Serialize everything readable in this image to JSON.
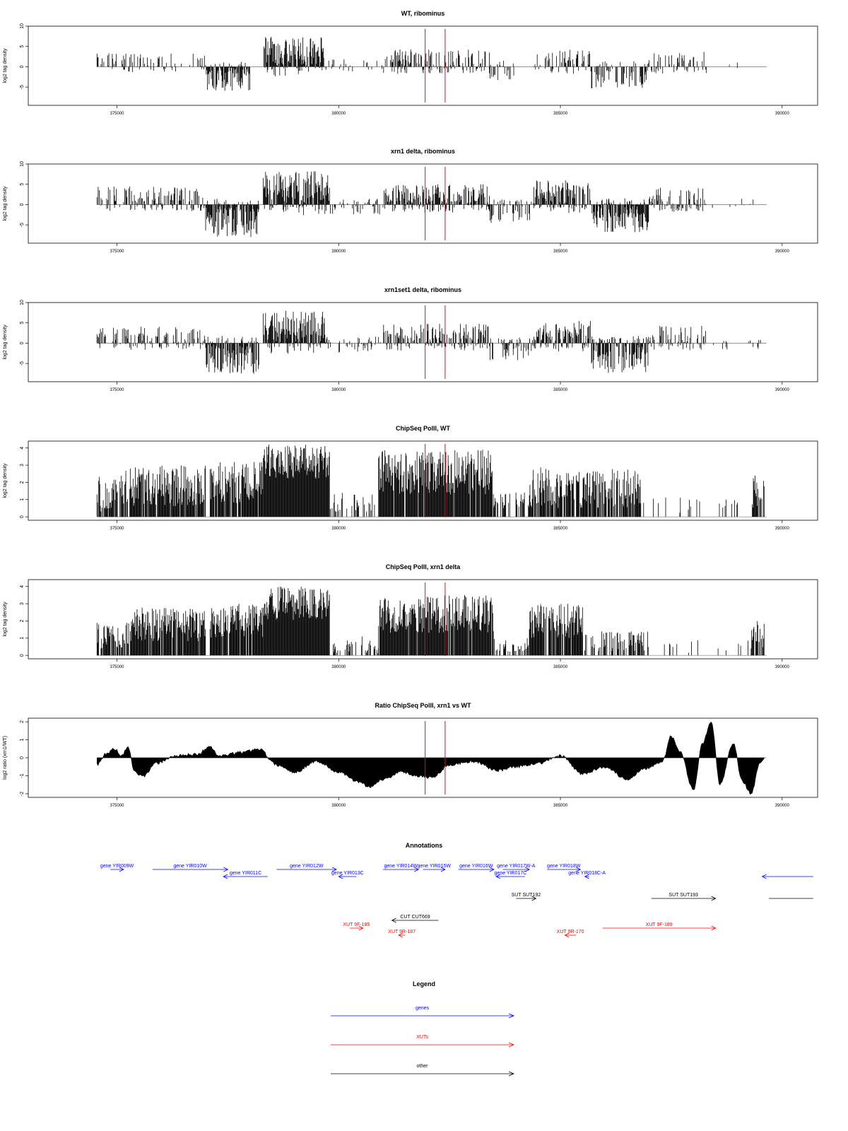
{
  "chart_data": [
    {
      "type": "bar",
      "title": "WT, ribominus",
      "ylabel": "log2 tag density",
      "xlim": [
        373000,
        390800
      ],
      "ylim": [
        -9.5,
        10
      ],
      "yticks": [
        "10",
        "5",
        "0",
        "-5"
      ],
      "xticks": [
        "375000",
        "380000",
        "385000",
        "390000"
      ],
      "markers": [
        381950,
        382400
      ],
      "segments": [
        {
          "x0": 374550,
          "x1": 377000,
          "mean": 1.2,
          "amp": 2.4,
          "density": 0.35
        },
        {
          "x0": 377000,
          "x1": 378000,
          "mean": -2.5,
          "amp": 3.5,
          "density": 0.9
        },
        {
          "x0": 378300,
          "x1": 379700,
          "mean": 3.5,
          "amp": 4.0,
          "density": 0.95
        },
        {
          "x0": 379700,
          "x1": 381000,
          "mean": 0.3,
          "amp": 1.8,
          "density": 0.15
        },
        {
          "x0": 381000,
          "x1": 383400,
          "mean": 1.4,
          "amp": 3.0,
          "density": 0.6
        },
        {
          "x0": 383400,
          "x1": 384000,
          "mean": -0.8,
          "amp": 2.5,
          "density": 0.35
        },
        {
          "x0": 384400,
          "x1": 385700,
          "mean": 1.2,
          "amp": 3.0,
          "density": 0.5
        },
        {
          "x0": 385700,
          "x1": 387000,
          "mean": -1.8,
          "amp": 3.5,
          "density": 0.6
        },
        {
          "x0": 387000,
          "x1": 388300,
          "mean": 1.0,
          "amp": 2.8,
          "density": 0.4
        },
        {
          "x0": 388300,
          "x1": 389500,
          "mean": 0.2,
          "amp": 1.5,
          "density": 0.04
        }
      ]
    },
    {
      "type": "bar",
      "title": "xrn1 delta, ribominus",
      "ylabel": "log2 tag density",
      "xlim": [
        373000,
        390800
      ],
      "ylim": [
        -9.5,
        10
      ],
      "yticks": [
        "10",
        "5",
        "0",
        "-5"
      ],
      "xticks": [
        "375000",
        "380000",
        "385000",
        "390000"
      ],
      "markers": [
        381950,
        382400
      ],
      "segments": [
        {
          "x0": 374550,
          "x1": 377000,
          "mean": 1.5,
          "amp": 3.0,
          "density": 0.6
        },
        {
          "x0": 377000,
          "x1": 378200,
          "mean": -3.5,
          "amp": 4.5,
          "density": 0.95
        },
        {
          "x0": 378300,
          "x1": 379800,
          "mean": 3.8,
          "amp": 4.5,
          "density": 0.95
        },
        {
          "x0": 379800,
          "x1": 381000,
          "mean": -0.5,
          "amp": 2.0,
          "density": 0.45
        },
        {
          "x0": 381000,
          "x1": 383400,
          "mean": 1.8,
          "amp": 3.2,
          "density": 0.8
        },
        {
          "x0": 383400,
          "x1": 384400,
          "mean": -1.5,
          "amp": 3.0,
          "density": 0.6
        },
        {
          "x0": 384400,
          "x1": 385700,
          "mean": 2.5,
          "amp": 3.5,
          "density": 0.85
        },
        {
          "x0": 385700,
          "x1": 387000,
          "mean": -2.8,
          "amp": 4.0,
          "density": 0.9
        },
        {
          "x0": 387000,
          "x1": 388300,
          "mean": 1.2,
          "amp": 3.0,
          "density": 0.6
        },
        {
          "x0": 388300,
          "x1": 389600,
          "mean": 0.0,
          "amp": 1.5,
          "density": 0.12
        }
      ]
    },
    {
      "type": "bar",
      "title": "xrn1set1 delta, ribominus",
      "ylabel": "log2 tag density",
      "xlim": [
        373000,
        390800
      ],
      "ylim": [
        -9.5,
        10
      ],
      "yticks": [
        "10",
        "5",
        "0",
        "-5"
      ],
      "xticks": [
        "375000",
        "380000",
        "385000",
        "390000"
      ],
      "markers": [
        381950,
        382400
      ],
      "segments": [
        {
          "x0": 374550,
          "x1": 377000,
          "mean": 1.3,
          "amp": 2.8,
          "density": 0.5
        },
        {
          "x0": 377000,
          "x1": 378200,
          "mean": -3.2,
          "amp": 4.5,
          "density": 0.9
        },
        {
          "x0": 378300,
          "x1": 379700,
          "mean": 3.5,
          "amp": 4.5,
          "density": 0.95
        },
        {
          "x0": 379700,
          "x1": 381000,
          "mean": -0.3,
          "amp": 2.0,
          "density": 0.35
        },
        {
          "x0": 381000,
          "x1": 383400,
          "mean": 1.6,
          "amp": 3.2,
          "density": 0.7
        },
        {
          "x0": 383400,
          "x1": 384400,
          "mean": -1.2,
          "amp": 3.0,
          "density": 0.5
        },
        {
          "x0": 384400,
          "x1": 385700,
          "mean": 2.0,
          "amp": 3.5,
          "density": 0.75
        },
        {
          "x0": 385700,
          "x1": 387000,
          "mean": -2.8,
          "amp": 4.5,
          "density": 0.9
        },
        {
          "x0": 387000,
          "x1": 388300,
          "mean": 1.3,
          "amp": 3.0,
          "density": 0.55
        },
        {
          "x0": 388300,
          "x1": 389600,
          "mean": -0.3,
          "amp": 1.5,
          "density": 0.12
        }
      ]
    },
    {
      "type": "bar",
      "title": "ChipSeq PolII, WT",
      "ylabel": "log2 tag density",
      "xlim": [
        373000,
        390800
      ],
      "ylim": [
        -0.2,
        4.4
      ],
      "yticks": [
        "4",
        "3",
        "2",
        "1",
        "0"
      ],
      "xticks": [
        "375000",
        "380000",
        "385000",
        "390000"
      ],
      "markers": [
        381950,
        382400
      ],
      "segments": [
        {
          "x0": 374550,
          "x1": 375300,
          "mean": 1.5,
          "amp": 1.2,
          "density": 0.7
        },
        {
          "x0": 375300,
          "x1": 377000,
          "mean": 1.8,
          "amp": 1.2,
          "density": 0.9
        },
        {
          "x0": 377100,
          "x1": 378300,
          "mean": 2.0,
          "amp": 1.2,
          "density": 0.9
        },
        {
          "x0": 378300,
          "x1": 379800,
          "mean": 3.2,
          "amp": 1.0,
          "density": 1.0
        },
        {
          "x0": 379800,
          "x1": 380900,
          "mean": 0.8,
          "amp": 0.6,
          "density": 0.35
        },
        {
          "x0": 380900,
          "x1": 383500,
          "mean": 2.6,
          "amp": 1.3,
          "density": 0.95
        },
        {
          "x0": 383500,
          "x1": 384300,
          "mean": 1.0,
          "amp": 0.5,
          "density": 0.5
        },
        {
          "x0": 384300,
          "x1": 386800,
          "mean": 1.7,
          "amp": 1.2,
          "density": 0.85
        },
        {
          "x0": 386800,
          "x1": 389300,
          "mean": 0.7,
          "amp": 0.5,
          "density": 0.1
        },
        {
          "x0": 389300,
          "x1": 389600,
          "mean": 1.5,
          "amp": 1.0,
          "density": 0.6
        }
      ]
    },
    {
      "type": "bar",
      "title": "ChipSeq PolII, xrn1 delta",
      "ylabel": "log2 tag density",
      "xlim": [
        373000,
        390800
      ],
      "ylim": [
        -0.2,
        4.4
      ],
      "yticks": [
        "4",
        "3",
        "2",
        "1",
        "0"
      ],
      "xticks": [
        "375000",
        "380000",
        "385000",
        "390000"
      ],
      "markers": [
        381950,
        382400
      ],
      "segments": [
        {
          "x0": 374550,
          "x1": 375300,
          "mean": 1.2,
          "amp": 0.8,
          "density": 0.7
        },
        {
          "x0": 375300,
          "x1": 377000,
          "mean": 1.8,
          "amp": 1.0,
          "density": 0.9
        },
        {
          "x0": 377100,
          "x1": 378300,
          "mean": 2.0,
          "amp": 1.0,
          "density": 0.9
        },
        {
          "x0": 378300,
          "x1": 379800,
          "mean": 3.0,
          "amp": 1.0,
          "density": 1.0
        },
        {
          "x0": 379800,
          "x1": 380900,
          "mean": 0.6,
          "amp": 0.5,
          "density": 0.3
        },
        {
          "x0": 380900,
          "x1": 383500,
          "mean": 2.4,
          "amp": 1.1,
          "density": 0.95
        },
        {
          "x0": 383500,
          "x1": 384300,
          "mean": 0.6,
          "amp": 0.4,
          "density": 0.4
        },
        {
          "x0": 384300,
          "x1": 385500,
          "mean": 2.0,
          "amp": 1.0,
          "density": 0.85
        },
        {
          "x0": 385500,
          "x1": 387000,
          "mean": 0.8,
          "amp": 0.6,
          "density": 0.5
        },
        {
          "x0": 387000,
          "x1": 389300,
          "mean": 0.5,
          "amp": 0.4,
          "density": 0.08
        },
        {
          "x0": 389300,
          "x1": 389600,
          "mean": 1.2,
          "amp": 0.8,
          "density": 0.7
        }
      ]
    },
    {
      "type": "area",
      "title": "Ratio ChipSeq PolII, xrn1 vs WT",
      "ylabel": "log2 ratio (xrn1/WT)",
      "xlim": [
        373000,
        390800
      ],
      "ylim": [
        -2.2,
        2.2
      ],
      "yticks": [
        "2",
        "1",
        "0",
        "-1",
        "-2"
      ],
      "xticks": [
        "375000",
        "380000",
        "385000",
        "390000"
      ],
      "markers": [
        381950,
        382400
      ],
      "profile": [
        [
          374550,
          -0.4
        ],
        [
          374750,
          0.2
        ],
        [
          374950,
          0.5
        ],
        [
          375100,
          0.1
        ],
        [
          375250,
          0.6
        ],
        [
          375400,
          -0.8
        ],
        [
          375600,
          -1.0
        ],
        [
          375900,
          -0.3
        ],
        [
          376300,
          0.1
        ],
        [
          376800,
          0.2
        ],
        [
          377100,
          0.6
        ],
        [
          377300,
          0.1
        ],
        [
          377800,
          0.3
        ],
        [
          378200,
          0.5
        ],
        [
          378600,
          -0.4
        ],
        [
          379000,
          -0.8
        ],
        [
          379500,
          -0.2
        ],
        [
          380000,
          -0.8
        ],
        [
          380400,
          -1.3
        ],
        [
          380700,
          -1.6
        ],
        [
          381000,
          -1.2
        ],
        [
          381400,
          -0.8
        ],
        [
          381800,
          -1.0
        ],
        [
          382100,
          -1.1
        ],
        [
          382500,
          -0.4
        ],
        [
          383000,
          -0.2
        ],
        [
          383600,
          -0.7
        ],
        [
          384000,
          -0.5
        ],
        [
          384500,
          -0.3
        ],
        [
          385000,
          0.1
        ],
        [
          385500,
          -0.9
        ],
        [
          386000,
          -0.5
        ],
        [
          386500,
          -1.2
        ],
        [
          386900,
          -0.6
        ],
        [
          387300,
          -0.2
        ],
        [
          387500,
          1.2
        ],
        [
          387700,
          0.3
        ],
        [
          388000,
          -1.8
        ],
        [
          388200,
          0.8
        ],
        [
          388400,
          2.0
        ],
        [
          388600,
          -1.5
        ],
        [
          388900,
          0.8
        ],
        [
          389100,
          -1.3
        ],
        [
          389300,
          -2.0
        ],
        [
          389500,
          -0.3
        ],
        [
          389600,
          0.0
        ]
      ]
    }
  ],
  "annotations": {
    "title": "Annotations",
    "xlim": [
      373000,
      390800
    ],
    "genes": [
      {
        "label": "gene YIR009W",
        "x0": 374850,
        "x1": 375150,
        "dir": 1,
        "lane": 0
      },
      {
        "label": "gene YIR010W",
        "x0": 375800,
        "x1": 377500,
        "dir": 1,
        "lane": 0
      },
      {
        "label": "gene YIR011C",
        "x0": 377400,
        "x1": 378400,
        "dir": -1,
        "lane": 1
      },
      {
        "label": "gene YIR012W",
        "x0": 378600,
        "x1": 379950,
        "dir": 1,
        "lane": 0
      },
      {
        "label": "gene YIR013C",
        "x0": 380000,
        "x1": 380400,
        "dir": -1,
        "lane": 1
      },
      {
        "label": "gene YIR014W",
        "x0": 381000,
        "x1": 381800,
        "dir": 1,
        "lane": 0
      },
      {
        "label": "gene YIR015W",
        "x0": 381900,
        "x1": 382400,
        "dir": 1,
        "lane": 0
      },
      {
        "label": "gene YIR016W",
        "x0": 382700,
        "x1": 383500,
        "dir": 1,
        "lane": 0
      },
      {
        "label": "gene YIR017W-A",
        "x0": 383700,
        "x1": 384300,
        "dir": 1,
        "lane": 0
      },
      {
        "label": "gene YIR017C",
        "x0": 383550,
        "x1": 384200,
        "dir": -1,
        "lane": 1
      },
      {
        "label": "gene YIR018W",
        "x0": 384700,
        "x1": 385450,
        "dir": 1,
        "lane": 0
      },
      {
        "label": "gene YIR018C-A",
        "x0": 385550,
        "x1": 385650,
        "dir": -1,
        "lane": 1
      },
      {
        "label": "",
        "x0": 389550,
        "x1": 390700,
        "dir": -1,
        "lane": 1
      }
    ],
    "other": [
      {
        "label": "SUT SUT192",
        "x0": 384000,
        "x1": 384450,
        "dir": 1,
        "lane": 2
      },
      {
        "label": "SUT SUT193",
        "x0": 387050,
        "x1": 388500,
        "dir": 1,
        "lane": 2
      },
      {
        "label": "",
        "x0": 389700,
        "x1": 390700,
        "dir": 0,
        "lane": 2
      },
      {
        "label": "CUT CUT669",
        "x0": 381200,
        "x1": 382250,
        "dir": -1,
        "lane": 3
      }
    ],
    "xuts": [
      {
        "label": "XUT 9F-185",
        "x0": 380250,
        "x1": 380550,
        "dir": 1,
        "lane": 4
      },
      {
        "label": "XUT 9R-187",
        "x0": 381350,
        "x1": 381500,
        "dir": -1,
        "lane": 5
      },
      {
        "label": "XUT 9R-170",
        "x0": 385100,
        "x1": 385350,
        "dir": -1,
        "lane": 5
      },
      {
        "label": "XUT 9F-189",
        "x0": 385950,
        "x1": 388500,
        "dir": 1,
        "lane": 4
      }
    ]
  },
  "legend": {
    "title": "Legend",
    "entries": [
      {
        "label": "genes",
        "color": "#0000ff"
      },
      {
        "label": "XUTs",
        "color": "#ff0000"
      },
      {
        "label": "other",
        "color": "#000000"
      }
    ]
  },
  "colors": {
    "data": "#000000",
    "marker": "#ff0000",
    "genes": "#0000ff",
    "xuts": "#ff0000",
    "other": "#000000"
  }
}
